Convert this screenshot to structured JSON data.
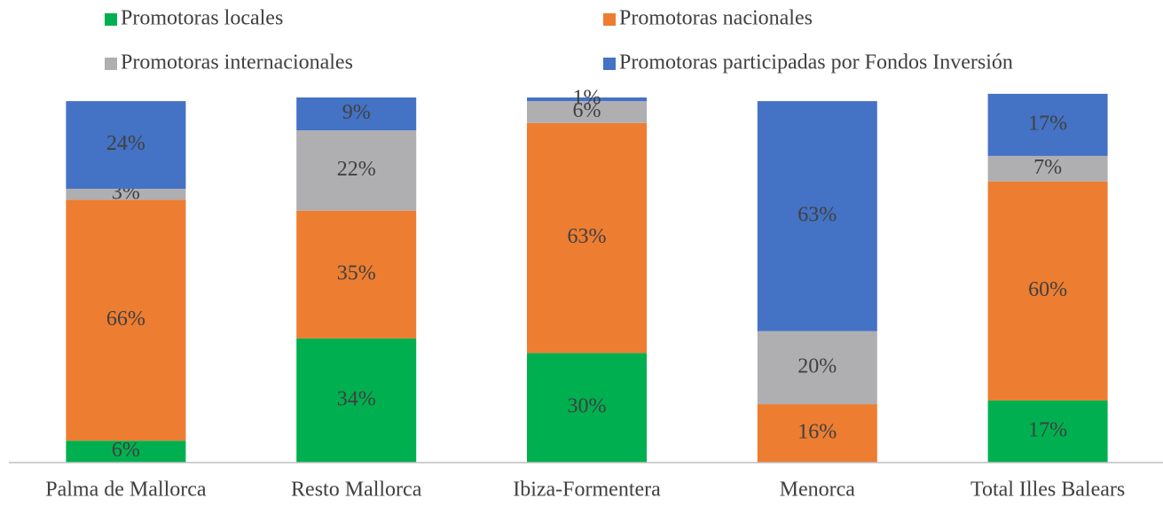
{
  "chart_data": {
    "type": "stacked_bar",
    "categories": [
      "Palma de Mallorca",
      "Resto Mallorca",
      "Ibiza-Formentera",
      "Menorca",
      "Total Illes Balears"
    ],
    "series": [
      {
        "name": "Promotoras locales",
        "color": "#00b050",
        "values": [
          6,
          34,
          30,
          0,
          17
        ],
        "value_labels": [
          "6%",
          "34%",
          "30%",
          null,
          "17%"
        ]
      },
      {
        "name": "Promotoras nacionales",
        "color": "#ed7d31",
        "values": [
          66,
          35,
          63,
          16,
          60
        ],
        "value_labels": [
          "66%",
          "35%",
          "63%",
          "16%",
          "60%"
        ]
      },
      {
        "name": "Promotoras internacionales",
        "color": "#afafb2",
        "values": [
          3,
          22,
          6,
          20,
          7
        ],
        "value_labels": [
          "3%",
          "22%",
          "6%",
          "20%",
          "7%"
        ]
      },
      {
        "name": "Promotoras participadas por Fondos Inversión",
        "color": "#4472c4",
        "values": [
          24,
          9,
          1,
          63,
          17
        ],
        "value_labels": [
          "24%",
          "9%",
          "1%",
          "63%",
          "17%"
        ]
      }
    ],
    "ylim": [
      0,
      100
    ]
  }
}
